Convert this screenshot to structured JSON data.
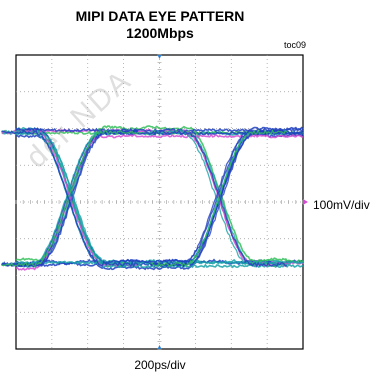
{
  "chart_data": {
    "type": "line",
    "title": "MIPI DATA EYE PATTERN",
    "subtitle": "1200Mbps",
    "figure_tag": "toc09",
    "vertical_scale": "100mV/div",
    "horizontal_scale": "200ps/div",
    "watermark": "der NDA",
    "x_divisions": 8,
    "y_divisions": 8,
    "grid": true,
    "x_unit": "ps",
    "y_unit": "mV",
    "x_range": [
      0,
      1600
    ],
    "y_range": [
      -400,
      400
    ],
    "eye": {
      "high_level_mV": 190,
      "low_level_mV": -170,
      "crossings_ps": [
        300,
        1130
      ],
      "transition_ps": 380,
      "trace_count": 14
    },
    "colors": {
      "trace_primary": "#1f3fbf",
      "trace_secondary": "#19a3a8",
      "trace_highlight": "#34c05a",
      "trace_magenta": "#d24dd2",
      "marker": "#2a7fd4",
      "grid": "#9a9a9a"
    }
  }
}
